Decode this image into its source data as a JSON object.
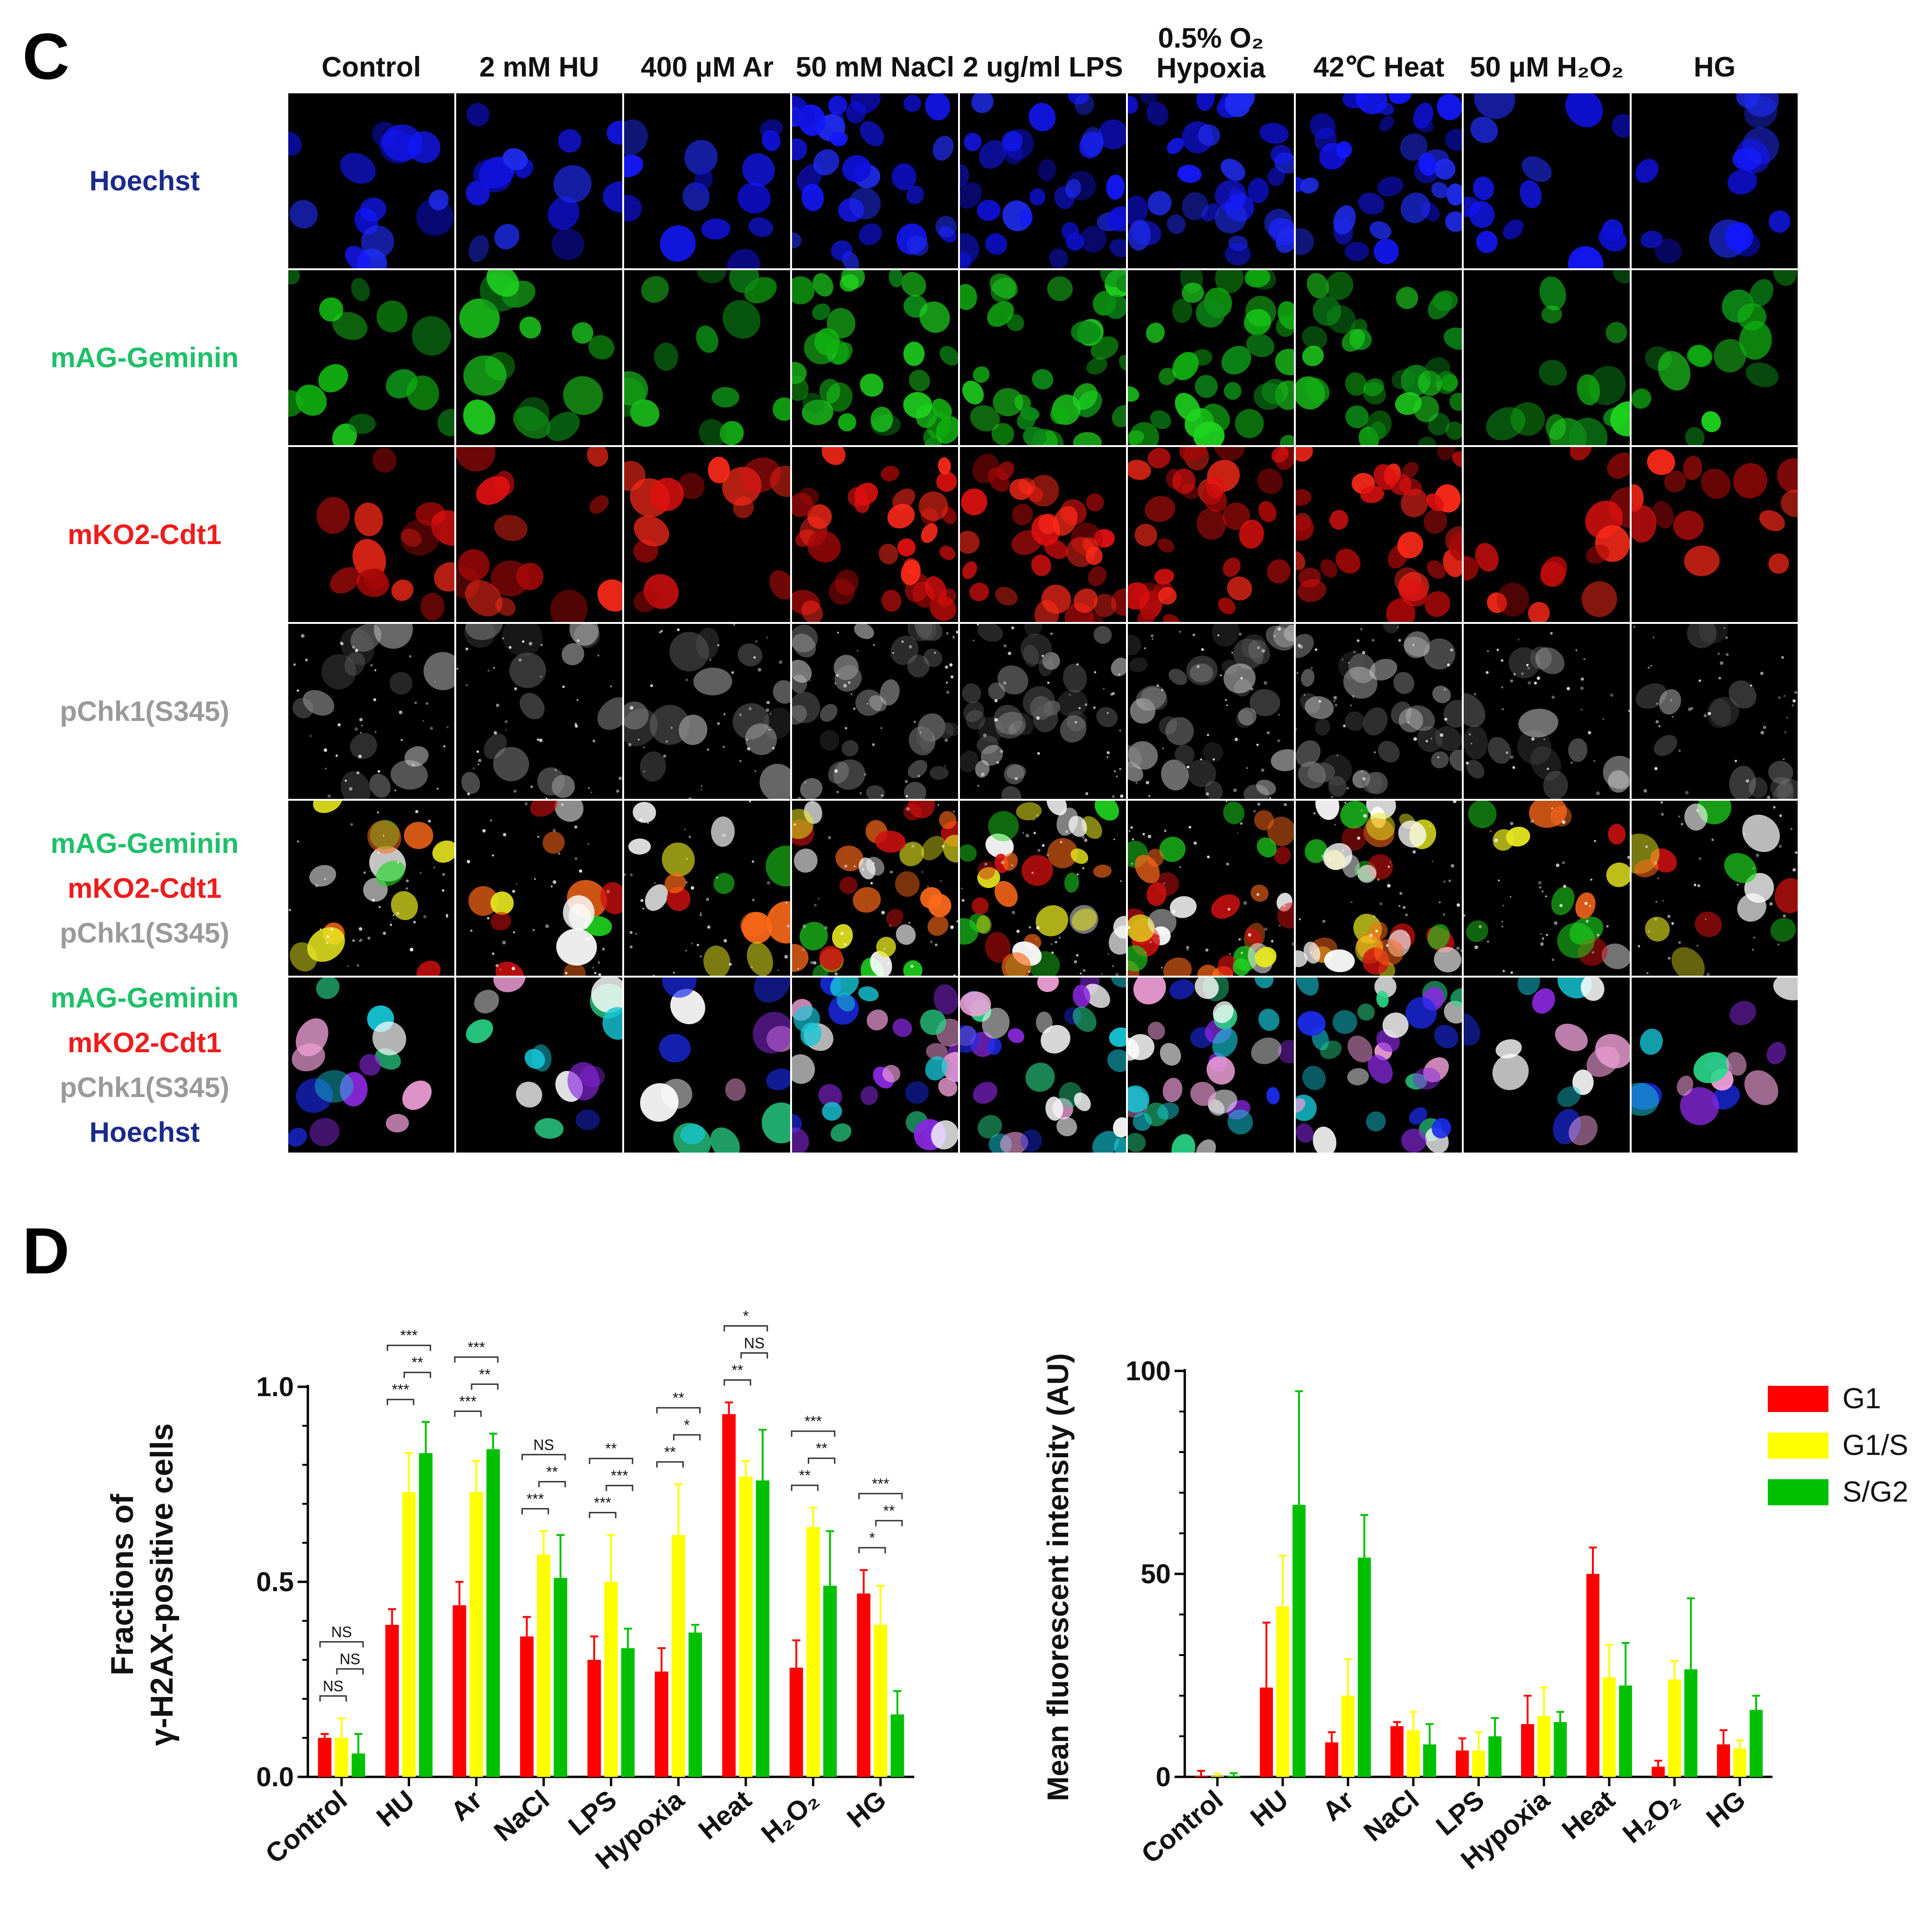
{
  "panel_c": {
    "letter": "C",
    "columns": [
      {
        "line1": "Control",
        "line2": ""
      },
      {
        "line1": "2 mM HU",
        "line2": ""
      },
      {
        "line1": "400 μM Ar",
        "line2": ""
      },
      {
        "line1": "50 mM NaCl",
        "line2": ""
      },
      {
        "line1": "2 ug/ml LPS",
        "line2": ""
      },
      {
        "line1": "0.5% O₂",
        "line2": "Hypoxia"
      },
      {
        "line1": "42℃ Heat",
        "line2": ""
      },
      {
        "line1": "50 μM H₂O₂",
        "line2": ""
      },
      {
        "line1": "HG",
        "line2": ""
      }
    ],
    "rows": [
      {
        "labels": [
          {
            "text": "Hoechst",
            "color": "#1a2a8c"
          }
        ],
        "channel": "hoechst"
      },
      {
        "labels": [
          {
            "text": "mAG-Geminin",
            "color": "#1fc06a"
          }
        ],
        "channel": "geminin"
      },
      {
        "labels": [
          {
            "text": "mKO2-Cdt1",
            "color": "#ee1c1c"
          }
        ],
        "channel": "cdt1"
      },
      {
        "labels": [
          {
            "text": "pChk1(S345)",
            "color": "#9a9a9a"
          }
        ],
        "channel": "pchk1"
      },
      {
        "labels": [
          {
            "text": "mAG-Geminin",
            "color": "#1fc06a"
          },
          {
            "text": "mKO2-Cdt1",
            "color": "#ee1c1c"
          },
          {
            "text": "pChk1(S345)",
            "color": "#9a9a9a"
          }
        ],
        "channel": "merge3"
      },
      {
        "labels": [
          {
            "text": "mAG-Geminin",
            "color": "#1fc06a"
          },
          {
            "text": "mKO2-Cdt1",
            "color": "#ee1c1c"
          },
          {
            "text": "pChk1(S345)",
            "color": "#9a9a9a"
          },
          {
            "text": "Hoechst",
            "color": "#1a2a8c"
          }
        ],
        "channel": "merge4"
      }
    ],
    "channel_colors": {
      "hoechst": [
        "#1418ff",
        "#1f2cf0",
        "#0f10d8"
      ],
      "geminin": [
        "#1fd61f",
        "#11b011",
        "#0c8a18"
      ],
      "cdt1": [
        "#e01010",
        "#a80808",
        "#ff2a1a"
      ],
      "pchk1": [
        "#d8d8d8",
        "#8c8c8c",
        "#5a5a5a"
      ],
      "merge3": [
        "#1fd61f",
        "#ff6a1a",
        "#e8e820",
        "#d01010",
        "#ffffff"
      ],
      "merge4": [
        "#1c2cf0",
        "#16c8d8",
        "#8a28e0",
        "#2ad88a",
        "#f0a0d8",
        "#ffffff"
      ]
    }
  },
  "panel_d": {
    "letter": "D",
    "legend": {
      "items": [
        "G1",
        "G1/S",
        "S/G2"
      ],
      "colors": [
        "#ff0000",
        "#ffff00",
        "#00c000"
      ]
    },
    "chart_data": [
      {
        "type": "bar",
        "title": "",
        "xlabel": "",
        "ylabel_line1": "Fractions of",
        "ylabel_line2": "γ-H2AX-positive cells",
        "ylim": [
          0,
          1.0
        ],
        "yticks": [
          "0.0",
          "0.5",
          "1.0"
        ],
        "ytick_values": [
          0,
          0.5,
          1.0
        ],
        "categories": [
          "Control",
          "HU",
          "Ar",
          "NaCl",
          "LPS",
          "Hypoxia",
          "Heat",
          "H₂O₂",
          "HG"
        ],
        "series": [
          {
            "name": "G1",
            "values": [
              0.1,
              0.39,
              0.44,
              0.36,
              0.3,
              0.27,
              0.93,
              0.28,
              0.47
            ],
            "errors": [
              0.01,
              0.04,
              0.06,
              0.05,
              0.06,
              0.06,
              0.03,
              0.07,
              0.06
            ]
          },
          {
            "name": "G1/S",
            "values": [
              0.1,
              0.73,
              0.73,
              0.57,
              0.5,
              0.62,
              0.77,
              0.64,
              0.39
            ],
            "errors": [
              0.05,
              0.1,
              0.08,
              0.06,
              0.12,
              0.13,
              0.04,
              0.05,
              0.1
            ]
          },
          {
            "name": "S/G2",
            "values": [
              0.06,
              0.83,
              0.84,
              0.51,
              0.33,
              0.37,
              0.76,
              0.49,
              0.16
            ],
            "errors": [
              0.05,
              0.08,
              0.04,
              0.11,
              0.05,
              0.02,
              0.13,
              0.14,
              0.06
            ]
          }
        ],
        "significance": [
          {
            "group": 0,
            "from": 0,
            "to": 1,
            "label": "NS",
            "level": 0
          },
          {
            "group": 0,
            "from": 1,
            "to": 2,
            "label": "NS",
            "level": 1
          },
          {
            "group": 0,
            "from": 0,
            "to": 2,
            "label": "NS",
            "level": 2
          },
          {
            "group": 1,
            "from": 0,
            "to": 1,
            "label": "***",
            "level": 0
          },
          {
            "group": 1,
            "from": 1,
            "to": 2,
            "label": "**",
            "level": 1
          },
          {
            "group": 1,
            "from": 0,
            "to": 2,
            "label": "***",
            "level": 2
          },
          {
            "group": 2,
            "from": 0,
            "to": 1,
            "label": "***",
            "level": 0
          },
          {
            "group": 2,
            "from": 1,
            "to": 2,
            "label": "**",
            "level": 1
          },
          {
            "group": 2,
            "from": 0,
            "to": 2,
            "label": "***",
            "level": 2
          },
          {
            "group": 3,
            "from": 0,
            "to": 1,
            "label": "***",
            "level": 0
          },
          {
            "group": 3,
            "from": 1,
            "to": 2,
            "label": "**",
            "level": 1
          },
          {
            "group": 3,
            "from": 0,
            "to": 2,
            "label": "NS",
            "level": 2
          },
          {
            "group": 4,
            "from": 0,
            "to": 1,
            "label": "***",
            "level": 0
          },
          {
            "group": 4,
            "from": 1,
            "to": 2,
            "label": "***",
            "level": 1
          },
          {
            "group": 4,
            "from": 0,
            "to": 2,
            "label": "**",
            "level": 2
          },
          {
            "group": 5,
            "from": 0,
            "to": 1,
            "label": "**",
            "level": 0
          },
          {
            "group": 5,
            "from": 1,
            "to": 2,
            "label": "*",
            "level": 1
          },
          {
            "group": 5,
            "from": 0,
            "to": 2,
            "label": "**",
            "level": 2
          },
          {
            "group": 6,
            "from": 0,
            "to": 1,
            "label": "**",
            "level": 0
          },
          {
            "group": 6,
            "from": 1,
            "to": 2,
            "label": "NS",
            "level": 1
          },
          {
            "group": 6,
            "from": 0,
            "to": 2,
            "label": "*",
            "level": 2
          },
          {
            "group": 7,
            "from": 0,
            "to": 1,
            "label": "**",
            "level": 0
          },
          {
            "group": 7,
            "from": 1,
            "to": 2,
            "label": "**",
            "level": 1
          },
          {
            "group": 7,
            "from": 0,
            "to": 2,
            "label": "***",
            "level": 2
          },
          {
            "group": 8,
            "from": 0,
            "to": 1,
            "label": "*",
            "level": 0
          },
          {
            "group": 8,
            "from": 1,
            "to": 2,
            "label": "**",
            "level": 1
          },
          {
            "group": 8,
            "from": 0,
            "to": 2,
            "label": "***",
            "level": 2
          }
        ]
      },
      {
        "type": "bar",
        "title": "",
        "xlabel": "",
        "ylabel": "Mean fluorescent intensity (AU)",
        "ylim": [
          0,
          100
        ],
        "yticks": [
          "0",
          "50",
          "100"
        ],
        "ytick_values": [
          0,
          50,
          100
        ],
        "categories": [
          "Control",
          "HU",
          "Ar",
          "NaCl",
          "LPS",
          "Hypoxia",
          "Heat",
          "H₂O₂",
          "HG"
        ],
        "series": [
          {
            "name": "G1",
            "values": [
              0.3,
              22,
              8.5,
              12.5,
              6.5,
              13,
              50,
              2.5,
              8
            ],
            "errors": [
              1.2,
              16,
              2.5,
              1,
              3,
              7,
              6.5,
              1.5,
              3.5
            ]
          },
          {
            "name": "G1/S",
            "values": [
              0.2,
              42,
              20,
              11.5,
              6.5,
              15,
              24.5,
              24,
              7
            ],
            "errors": [
              0.6,
              12.5,
              9,
              4.5,
              4.5,
              7,
              8,
              4.5,
              2
            ]
          },
          {
            "name": "S/G2",
            "values": [
              0.3,
              67,
              54,
              8,
              10,
              13.5,
              22.5,
              26.5,
              16.5
            ],
            "errors": [
              0.6,
              28,
              10.5,
              5,
              4.5,
              2.5,
              10.5,
              17.5,
              3.5
            ]
          }
        ]
      }
    ]
  }
}
